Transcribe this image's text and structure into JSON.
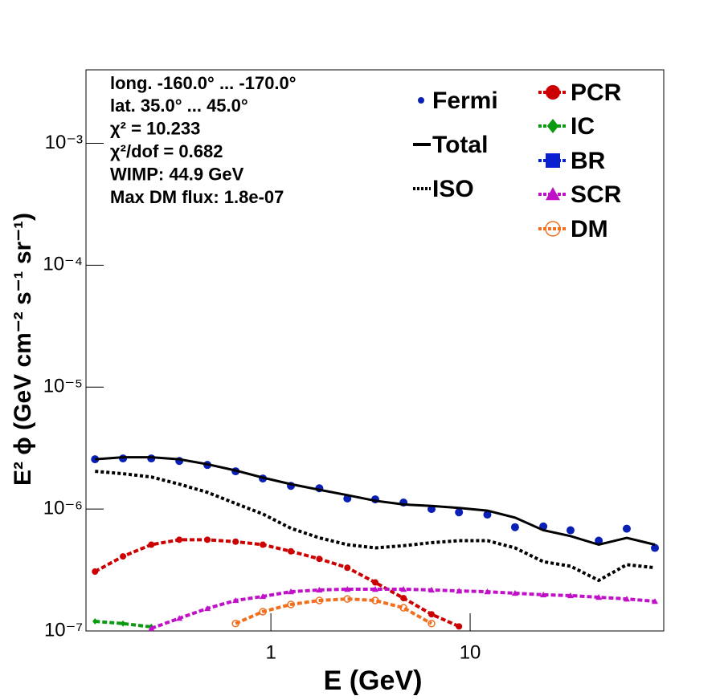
{
  "chart_data": {
    "type": "line",
    "xlabel": "E (GeV)",
    "ylabel": "E² ϕ (GeV cm⁻² s⁻¹ sr⁻¹)",
    "annotations": [
      "long. -160.0° ... -170.0°",
      "lat. 35.0° ... 45.0°",
      "χ² = 10.233",
      "χ²/dof = 0.682",
      "WIMP: 44.9 GeV",
      "Max DM flux: 1.8e-07"
    ],
    "xlog": true,
    "ylog": true,
    "xlim": [
      0.118,
      93.7
    ],
    "ylim": [
      1e-07,
      0.004
    ],
    "xticks": [
      1,
      10
    ],
    "yticks": [
      {
        "value": 1e-07,
        "label": "10⁻⁷"
      },
      {
        "value": 1e-06,
        "label": "10⁻⁶"
      },
      {
        "value": 1e-05,
        "label": "10⁻⁵"
      },
      {
        "value": 0.0001,
        "label": "10⁻⁴"
      },
      {
        "value": 0.001,
        "label": "10⁻³"
      }
    ],
    "x": [
      0.131,
      0.181,
      0.251,
      0.347,
      0.48,
      0.665,
      0.911,
      1.26,
      1.75,
      2.42,
      3.34,
      4.63,
      6.4,
      8.79,
      12.2,
      16.8,
      23.3,
      31.9,
      44.2,
      61.1,
      84.6
    ],
    "series": [
      {
        "name": "Fermi",
        "color": "#0a1fb5",
        "style": "points",
        "marker": "circle",
        "values": [
          2.56e-06,
          2.6e-06,
          2.6e-06,
          2.48e-06,
          2.3e-06,
          2.04e-06,
          1.78e-06,
          1.55e-06,
          1.48e-06,
          1.22e-06,
          1.2e-06,
          1.13e-06,
          1e-06,
          9.4e-07,
          9e-07,
          7.1e-07,
          7.2e-07,
          6.7e-07,
          5.5e-07,
          6.9e-07,
          4.8e-07
        ]
      },
      {
        "name": "Total",
        "color": "#000000",
        "style": "solid",
        "values": [
          2.56e-06,
          2.66e-06,
          2.66e-06,
          2.56e-06,
          2.33e-06,
          2.07e-06,
          1.81e-06,
          1.6e-06,
          1.44e-06,
          1.3e-06,
          1.17e-06,
          1.09e-06,
          1.06e-06,
          1.02e-06,
          9.7e-07,
          8.5e-07,
          6.7e-07,
          6e-07,
          5.1e-07,
          5.8e-07,
          5.1e-07
        ]
      },
      {
        "name": "ISO",
        "color": "#000000",
        "style": "dotted",
        "values": [
          2.04e-06,
          1.95e-06,
          1.83e-06,
          1.6e-06,
          1.37e-06,
          1.11e-06,
          9.1e-07,
          6.95e-07,
          5.8e-07,
          5.1e-07,
          4.8e-07,
          5e-07,
          5.3e-07,
          5.5e-07,
          5.5e-07,
          4.8e-07,
          3.7e-07,
          3.4e-07,
          2.6e-07,
          3.5e-07,
          3.3e-07
        ]
      },
      {
        "name": "PCR",
        "color": "#cc0000",
        "style": "dashed",
        "marker": "circle",
        "values": [
          3.07e-07,
          4.09e-07,
          5.1e-07,
          5.6e-07,
          5.6e-07,
          5.4e-07,
          5.1e-07,
          4.5e-07,
          3.9e-07,
          3.3e-07,
          2.5e-07,
          1.86e-07,
          1.37e-07,
          1.09e-07,
          null,
          null,
          null,
          null,
          null,
          null,
          null
        ]
      },
      {
        "name": "IC",
        "color": "#0a9a10",
        "style": "dashed",
        "marker": "diamond",
        "values": [
          1.2e-07,
          1.15e-07,
          1.08e-07,
          null,
          null,
          null,
          null,
          null,
          null,
          null,
          null,
          null,
          null,
          null,
          null,
          null,
          null,
          null,
          null,
          null,
          null
        ]
      },
      {
        "name": "BR",
        "color": "#0a1fd0",
        "style": "dashed",
        "marker": "square",
        "values": [
          null,
          null,
          null,
          null,
          null,
          null,
          null,
          null,
          null,
          null,
          null,
          null,
          null,
          null,
          null,
          null,
          null,
          null,
          null,
          null,
          null
        ]
      },
      {
        "name": "SCR",
        "color": "#c010c8",
        "style": "dashed",
        "marker": "triangle",
        "values": [
          null,
          null,
          1.05e-07,
          1.27e-07,
          1.53e-07,
          1.78e-07,
          1.92e-07,
          2.1e-07,
          2.17e-07,
          2.2e-07,
          2.2e-07,
          2.2e-07,
          2.17e-07,
          2.13e-07,
          2.1e-07,
          2.04e-07,
          1.98e-07,
          1.95e-07,
          1.89e-07,
          1.83e-07,
          1.75e-07
        ]
      },
      {
        "name": "DM",
        "color": "#f07020",
        "style": "dashed",
        "marker": "open-circle",
        "values": [
          null,
          null,
          null,
          null,
          null,
          1.15e-07,
          1.44e-07,
          1.65e-07,
          1.78e-07,
          1.83e-07,
          1.78e-07,
          1.55e-07,
          1.15e-07,
          null,
          null,
          null,
          null,
          null,
          null,
          null,
          null
        ]
      }
    ]
  }
}
